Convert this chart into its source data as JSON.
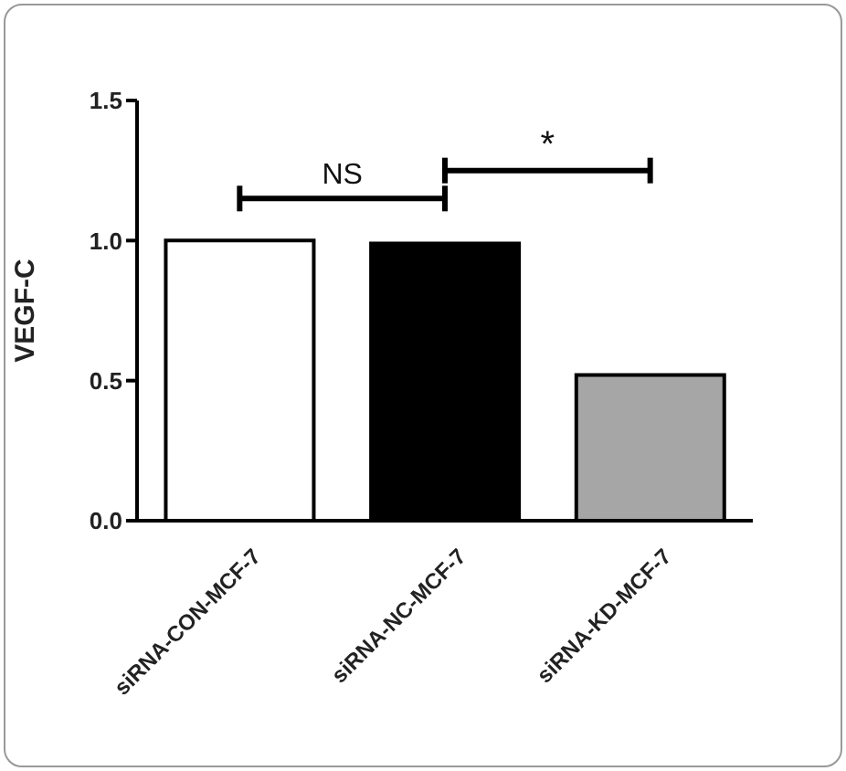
{
  "chart_data": {
    "type": "bar",
    "ylabel": "VEGF-C",
    "categories": [
      "siRNA-CON-MCF-7",
      "siRNA-NC-MCF-7",
      "siRNA-KD-MCF-7"
    ],
    "values": [
      1.0,
      0.99,
      0.52
    ],
    "colors": [
      "#ffffff",
      "#000000",
      "#a6a6a6"
    ],
    "ylim": [
      0,
      1.5
    ],
    "yticks": [
      {
        "value": 0,
        "label": "0.0"
      },
      {
        "value": 0.5,
        "label": "0.5"
      },
      {
        "value": 1,
        "label": "1.0"
      },
      {
        "value": 1.5,
        "label": "1.5"
      }
    ],
    "annotations": [
      "NS",
      "*"
    ],
    "grid": false,
    "legend": false
  }
}
